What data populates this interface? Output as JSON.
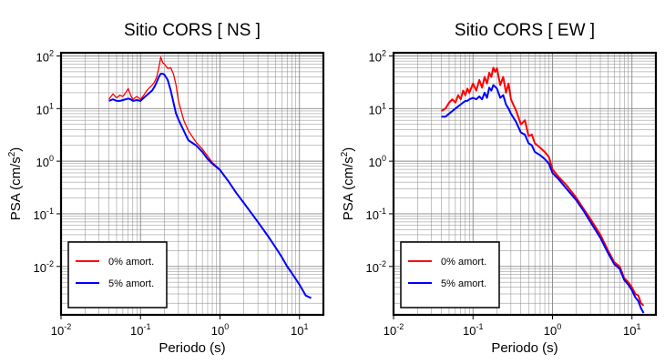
{
  "chart_data": [
    {
      "type": "line",
      "title": "Sitio CORS [ NS ]",
      "xlabel": "Periodo (s)",
      "ylabel_main": "PSA (cm/s",
      "ylabel_sup": "2",
      "ylabel_close": ")",
      "x_scale": "log",
      "y_scale": "log",
      "xlim": [
        0.01,
        20
      ],
      "ylim": [
        0.0012,
        115
      ],
      "grid": true,
      "legend_position": "bottom-left",
      "x_ticks": [
        {
          "base": "10",
          "exp": "-2",
          "value": 0.01
        },
        {
          "base": "10",
          "exp": "-1",
          "value": 0.1
        },
        {
          "base": "10",
          "exp": "0",
          "value": 1
        },
        {
          "base": "10",
          "exp": "1",
          "value": 10
        }
      ],
      "y_ticks": [
        {
          "base": "10",
          "exp": "-2",
          "value": 0.01
        },
        {
          "base": "10",
          "exp": "-1",
          "value": 0.1
        },
        {
          "base": "10",
          "exp": "0",
          "value": 1
        },
        {
          "base": "10",
          "exp": "1",
          "value": 10
        },
        {
          "base": "10",
          "exp": "2",
          "value": 100
        }
      ],
      "series": [
        {
          "name": "0% amort.",
          "color": "#ff0000",
          "width": 1.3,
          "x": [
            0.04,
            0.045,
            0.05,
            0.055,
            0.06,
            0.065,
            0.07,
            0.075,
            0.08,
            0.09,
            0.1,
            0.11,
            0.12,
            0.13,
            0.14,
            0.15,
            0.16,
            0.17,
            0.18,
            0.19,
            0.2,
            0.22,
            0.24,
            0.26,
            0.28,
            0.3,
            0.35,
            0.4,
            0.5,
            0.6,
            0.7,
            0.8,
            1.0,
            1.3,
            1.6,
            2.0,
            3.0,
            4.0,
            5.0,
            6.0,
            7.0,
            8.0,
            10.0,
            12.0,
            14.0
          ],
          "y": [
            15,
            19,
            16,
            18,
            17,
            20,
            24,
            18,
            15,
            17,
            15,
            18,
            22,
            25,
            28,
            32,
            40,
            60,
            95,
            75,
            70,
            58,
            60,
            45,
            28,
            14,
            6.0,
            3.8,
            2.3,
            1.7,
            1.25,
            0.95,
            0.7,
            0.4,
            0.25,
            0.16,
            0.07,
            0.038,
            0.023,
            0.015,
            0.01,
            0.0075,
            0.0045,
            0.0028,
            0.0025
          ]
        },
        {
          "name": "5% amort.",
          "color": "#0000ff",
          "width": 2.0,
          "x": [
            0.04,
            0.045,
            0.05,
            0.055,
            0.06,
            0.065,
            0.07,
            0.075,
            0.08,
            0.09,
            0.1,
            0.11,
            0.12,
            0.13,
            0.14,
            0.15,
            0.16,
            0.17,
            0.18,
            0.19,
            0.2,
            0.22,
            0.24,
            0.26,
            0.28,
            0.3,
            0.35,
            0.4,
            0.5,
            0.6,
            0.7,
            0.8,
            1.0,
            1.3,
            1.6,
            2.0,
            3.0,
            4.0,
            5.0,
            6.0,
            7.0,
            8.0,
            10.0,
            12.0,
            14.0
          ],
          "y": [
            14,
            15,
            14,
            14,
            14.5,
            15,
            15.5,
            15,
            14,
            14.5,
            14,
            16,
            18,
            20,
            22,
            26,
            32,
            40,
            46,
            46,
            44,
            35,
            22,
            13,
            8.0,
            6.2,
            3.8,
            2.5,
            2.0,
            1.5,
            1.1,
            0.9,
            0.68,
            0.4,
            0.25,
            0.16,
            0.07,
            0.038,
            0.023,
            0.015,
            0.01,
            0.0075,
            0.0045,
            0.0028,
            0.0025
          ]
        }
      ]
    },
    {
      "type": "line",
      "title": "Sitio CORS [ EW ]",
      "xlabel": "Periodo (s)",
      "ylabel_main": "PSA (cm/s",
      "ylabel_sup": "2",
      "ylabel_close": ")",
      "x_scale": "log",
      "y_scale": "log",
      "xlim": [
        0.01,
        20
      ],
      "ylim": [
        0.0012,
        115
      ],
      "grid": true,
      "legend_position": "bottom-left",
      "x_ticks": [
        {
          "base": "10",
          "exp": "-2",
          "value": 0.01
        },
        {
          "base": "10",
          "exp": "-1",
          "value": 0.1
        },
        {
          "base": "10",
          "exp": "0",
          "value": 1
        },
        {
          "base": "10",
          "exp": "1",
          "value": 10
        }
      ],
      "y_ticks": [
        {
          "base": "10",
          "exp": "-2",
          "value": 0.01
        },
        {
          "base": "10",
          "exp": "-1",
          "value": 0.1
        },
        {
          "base": "10",
          "exp": "0",
          "value": 1
        },
        {
          "base": "10",
          "exp": "1",
          "value": 10
        },
        {
          "base": "10",
          "exp": "2",
          "value": 100
        }
      ],
      "series": [
        {
          "name": "0% amort.",
          "color": "#ff0000",
          "width": 2.0,
          "x": [
            0.04,
            0.045,
            0.05,
            0.055,
            0.06,
            0.065,
            0.07,
            0.075,
            0.08,
            0.085,
            0.09,
            0.1,
            0.11,
            0.12,
            0.13,
            0.14,
            0.15,
            0.16,
            0.17,
            0.18,
            0.19,
            0.2,
            0.22,
            0.24,
            0.26,
            0.28,
            0.3,
            0.35,
            0.4,
            0.45,
            0.5,
            0.55,
            0.6,
            0.7,
            0.8,
            0.9,
            1.0,
            1.2,
            1.5,
            2.0,
            2.5,
            3.0,
            4.0,
            5.0,
            6.0,
            7.0,
            8.0,
            9.0,
            10.0,
            11.0,
            12.0,
            13.0,
            14.0
          ],
          "y": [
            9,
            10,
            13,
            15,
            13,
            18,
            15,
            22,
            18,
            24,
            20,
            30,
            22,
            35,
            25,
            40,
            30,
            48,
            40,
            60,
            50,
            58,
            28,
            40,
            20,
            30,
            15,
            9,
            5.0,
            6.0,
            3.0,
            3.2,
            2.2,
            1.8,
            1.5,
            1.2,
            0.7,
            0.5,
            0.35,
            0.2,
            0.12,
            0.08,
            0.04,
            0.02,
            0.012,
            0.01,
            0.006,
            0.005,
            0.004,
            0.003,
            0.0028,
            0.002,
            0.0018
          ]
        },
        {
          "name": "5% amort.",
          "color": "#0000ff",
          "width": 2.0,
          "x": [
            0.04,
            0.045,
            0.05,
            0.055,
            0.06,
            0.065,
            0.07,
            0.075,
            0.08,
            0.085,
            0.09,
            0.1,
            0.11,
            0.12,
            0.13,
            0.14,
            0.15,
            0.16,
            0.17,
            0.18,
            0.19,
            0.2,
            0.22,
            0.24,
            0.26,
            0.28,
            0.3,
            0.35,
            0.4,
            0.45,
            0.5,
            0.55,
            0.6,
            0.7,
            0.8,
            0.9,
            1.0,
            1.2,
            1.5,
            2.0,
            2.5,
            3.0,
            4.0,
            5.0,
            6.0,
            7.0,
            8.0,
            9.0,
            10.0,
            11.0,
            12.0,
            13.0,
            14.0
          ],
          "y": [
            7,
            7,
            8,
            9,
            10,
            11,
            12,
            13,
            14,
            14,
            15,
            16,
            15,
            17,
            15,
            20,
            16,
            25,
            22,
            28,
            26,
            24,
            16,
            18,
            12,
            10,
            8,
            5.5,
            3.5,
            3.2,
            2.2,
            2.0,
            1.5,
            1.3,
            1.1,
            0.9,
            0.6,
            0.45,
            0.3,
            0.18,
            0.11,
            0.07,
            0.035,
            0.018,
            0.011,
            0.009,
            0.0055,
            0.0045,
            0.0035,
            0.0026,
            0.0022,
            0.0016,
            0.0013
          ]
        }
      ]
    }
  ]
}
